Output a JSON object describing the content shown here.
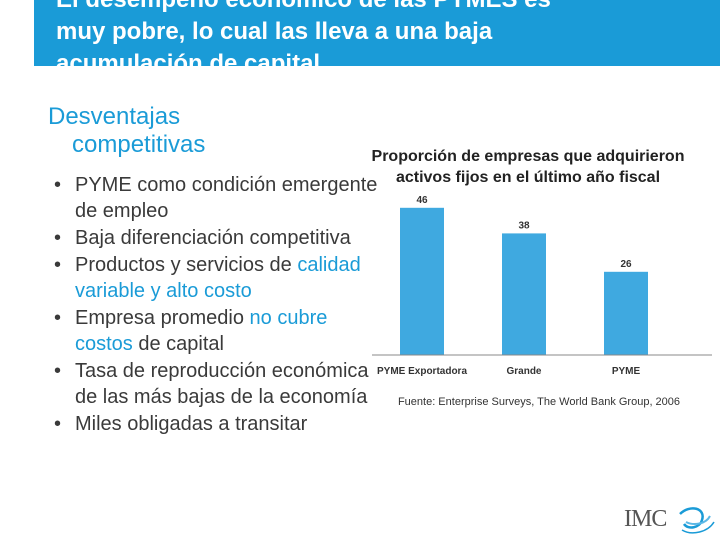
{
  "slide": {
    "title_line1": "El desempeño económico de las PYMES es",
    "title_line2": "muy pobre, lo cual las lleva a una baja",
    "title_line3": "acumulación de capital"
  },
  "left": {
    "heading_line1": "Desventajas",
    "heading_line2": "competitivas",
    "bullets": [
      {
        "parts": [
          "PYME como condición emergente de empleo"
        ]
      },
      {
        "parts": [
          "Baja diferenciación competitiva"
        ]
      },
      {
        "pre": "Productos y servicios de ",
        "hl": "calidad variable y alto costo",
        "post": ""
      },
      {
        "pre": "Empresa promedio ",
        "hl": "no cubre costos",
        "post": " de capital"
      },
      {
        "parts": [
          "Tasa de reproducción económica de las más bajas de la economía"
        ]
      },
      {
        "parts": [
          "Miles obligadas a transitar"
        ]
      }
    ]
  },
  "chart_data": {
    "type": "bar",
    "title": "Proporción de empresas que adquirieron activos fijos en el último año fiscal",
    "categories": [
      "PYME Exportadora",
      "Grande",
      "PYME"
    ],
    "values": [
      46,
      38,
      26
    ],
    "bar_color": "#3fa9e0",
    "ylim": [
      0,
      50
    ]
  },
  "source": "Fuente: Enterprise Surveys, The World Bank Group, 2006",
  "logo": {
    "text": "IMC"
  }
}
